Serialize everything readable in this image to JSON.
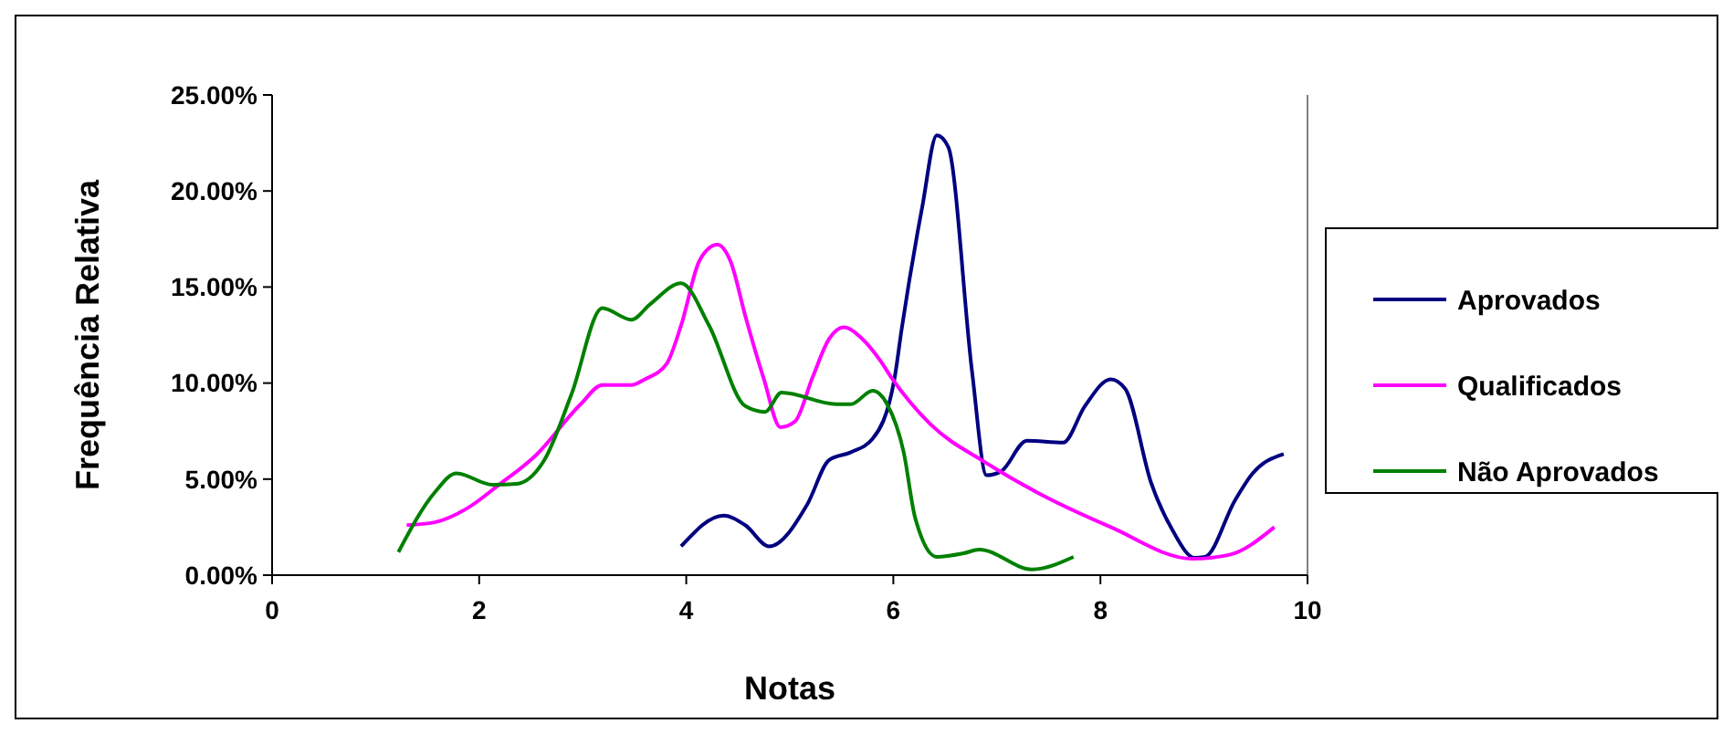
{
  "chart_data": {
    "type": "line",
    "xlabel": "Notas",
    "ylabel": "Frequência Relativa",
    "xlim": [
      0,
      10
    ],
    "xticks": [
      0,
      2,
      4,
      6,
      8,
      10
    ],
    "ylim": [
      0,
      25
    ],
    "yticks": [
      {
        "value": 0,
        "label": "0.00%"
      },
      {
        "value": 5,
        "label": "5.00%"
      },
      {
        "value": 10,
        "label": "10.00%"
      },
      {
        "value": 15,
        "label": "15.00%"
      },
      {
        "value": 20,
        "label": "20.00%"
      },
      {
        "value": 25,
        "label": "25.00%"
      }
    ],
    "grid": false,
    "legend": "right",
    "marker": "none",
    "line_style": "solid",
    "series": [
      {
        "name": "Aprovados",
        "color": "#000080",
        "x": [
          3.95,
          4.36,
          4.57,
          4.8,
          5.17,
          5.38,
          5.59,
          5.8,
          6.01,
          6.08,
          6.28,
          6.42,
          6.53,
          6.76,
          6.9,
          7.04,
          7.29,
          7.64,
          7.85,
          8.1,
          8.24,
          8.49,
          8.7,
          8.91,
          9.01,
          9.3,
          9.47,
          9.77
        ],
        "values": [
          1.5,
          3.1,
          2.6,
          1.5,
          3.7,
          6.0,
          6.4,
          7.1,
          10.2,
          12.8,
          19.2,
          22.9,
          22.3,
          10.6,
          5.2,
          5.4,
          7.0,
          6.9,
          8.8,
          10.2,
          9.7,
          4.8,
          2.3,
          0.9,
          0.95,
          3.9,
          5.3,
          6.3
        ]
      },
      {
        "name": "Qualificados",
        "color": "#ff00ff",
        "x": [
          1.3,
          1.57,
          1.89,
          2.19,
          2.54,
          2.98,
          3.19,
          3.47,
          3.6,
          3.81,
          3.95,
          4.13,
          4.3,
          4.43,
          4.57,
          4.75,
          4.91,
          5.05,
          5.22,
          5.38,
          5.52,
          5.7,
          5.87,
          5.98,
          6.37,
          6.88,
          7.39,
          8.1,
          8.89,
          9.24,
          9.68
        ],
        "values": [
          2.6,
          2.75,
          3.5,
          4.7,
          6.2,
          8.9,
          9.9,
          9.9,
          10.2,
          11.0,
          13.0,
          16.4,
          17.2,
          16.3,
          13.5,
          10.2,
          7.7,
          8.0,
          10.3,
          12.3,
          12.9,
          12.3,
          11.2,
          10.3,
          7.8,
          5.9,
          4.3,
          2.5,
          0.85,
          1.05,
          2.5
        ]
      },
      {
        "name": "Não Aprovados",
        "color": "#008000",
        "x": [
          1.22,
          1.57,
          1.78,
          2.13,
          2.36,
          2.63,
          2.89,
          3.19,
          3.47,
          3.65,
          3.95,
          4.22,
          4.57,
          4.76,
          4.92,
          5.45,
          5.59,
          5.8,
          5.94,
          6.1,
          6.21,
          6.42,
          6.68,
          6.83,
          7.34,
          7.74
        ],
        "values": [
          1.2,
          4.3,
          5.3,
          4.7,
          4.75,
          6.0,
          9.4,
          13.9,
          13.3,
          14.1,
          15.2,
          13.0,
          8.8,
          8.5,
          9.5,
          8.9,
          8.9,
          9.6,
          8.9,
          6.4,
          3.0,
          0.95,
          1.14,
          1.33,
          0.3,
          0.95
        ]
      }
    ]
  }
}
